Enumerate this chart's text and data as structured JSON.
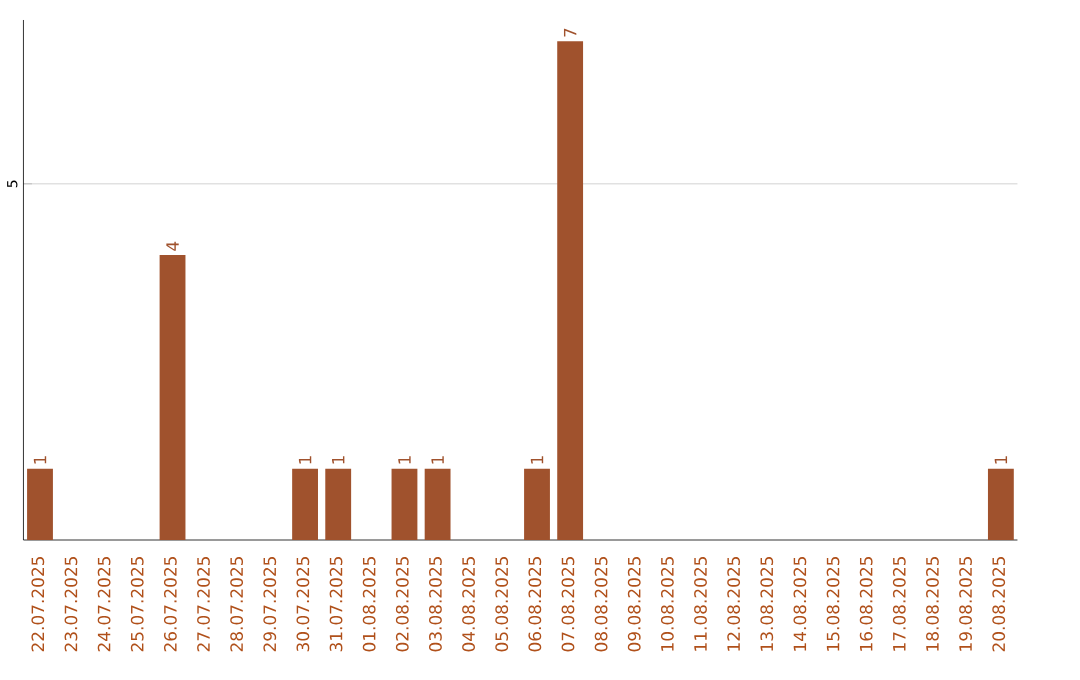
{
  "chart_data": {
    "type": "bar",
    "categories": [
      "22.07.2025",
      "23.07.2025",
      "24.07.2025",
      "25.07.2025",
      "26.07.2025",
      "27.07.2025",
      "28.07.2025",
      "29.07.2025",
      "30.07.2025",
      "31.07.2025",
      "01.08.2025",
      "02.08.2025",
      "03.08.2025",
      "04.08.2025",
      "05.08.2025",
      "06.08.2025",
      "07.08.2025",
      "08.08.2025",
      "09.08.2025",
      "10.08.2025",
      "11.08.2025",
      "12.08.2025",
      "13.08.2025",
      "14.08.2025",
      "15.08.2025",
      "16.08.2025",
      "17.08.2025",
      "18.08.2025",
      "19.08.2025",
      "20.08.2025"
    ],
    "values": [
      1,
      0,
      0,
      0,
      4,
      0,
      0,
      0,
      1,
      1,
      0,
      1,
      1,
      0,
      0,
      1,
      7,
      0,
      0,
      0,
      0,
      0,
      0,
      0,
      0,
      0,
      0,
      0,
      0,
      1
    ],
    "value_labels": [
      "1",
      null,
      null,
      null,
      "4",
      null,
      null,
      null,
      "1",
      "1",
      null,
      "1",
      "1",
      null,
      null,
      "1",
      "7",
      null,
      null,
      null,
      null,
      null,
      null,
      null,
      null,
      null,
      null,
      null,
      null,
      "1"
    ],
    "color": "#a0522d",
    "ylim": [
      0,
      7.3
    ],
    "yticks": [
      5
    ],
    "grid": "y"
  }
}
